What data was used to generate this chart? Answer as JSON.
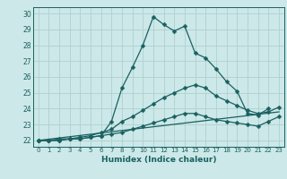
{
  "xlabel": "Humidex (Indice chaleur)",
  "xlim": [
    -0.5,
    23.5
  ],
  "ylim": [
    21.6,
    30.4
  ],
  "xticks": [
    0,
    1,
    2,
    3,
    4,
    5,
    6,
    7,
    8,
    9,
    10,
    11,
    12,
    13,
    14,
    15,
    16,
    17,
    18,
    19,
    20,
    21,
    22,
    23
  ],
  "yticks": [
    22,
    23,
    24,
    25,
    26,
    27,
    28,
    29,
    30
  ],
  "bg_color": "#cce8e8",
  "grid_color": "#b0d0d0",
  "line_color": "#1a6060",
  "lines": [
    {
      "x": [
        0,
        1,
        2,
        3,
        4,
        5,
        6,
        7,
        8,
        9,
        10,
        11,
        12,
        13,
        14,
        15,
        16,
        17,
        18,
        19,
        20,
        21,
        22
      ],
      "y": [
        22.0,
        22.0,
        22.0,
        22.1,
        22.1,
        22.2,
        22.3,
        23.2,
        25.3,
        26.6,
        28.0,
        29.8,
        29.3,
        28.9,
        29.2,
        27.5,
        27.2,
        26.5,
        25.7,
        25.1,
        23.7,
        23.6,
        24.0
      ],
      "marker": true
    },
    {
      "x": [
        0,
        1,
        2,
        3,
        4,
        5,
        6,
        7,
        8,
        9,
        10,
        11,
        12,
        13,
        14,
        15,
        16,
        17,
        18,
        19,
        20,
        21,
        22,
        23
      ],
      "y": [
        22.0,
        22.0,
        22.1,
        22.1,
        22.2,
        22.3,
        22.5,
        22.7,
        23.2,
        23.5,
        23.9,
        24.3,
        24.7,
        25.0,
        25.3,
        25.5,
        25.3,
        24.8,
        24.5,
        24.2,
        23.9,
        23.7,
        23.8,
        24.1
      ],
      "marker": true
    },
    {
      "x": [
        0,
        1,
        2,
        3,
        4,
        5,
        6,
        7,
        8,
        9,
        10,
        11,
        12,
        13,
        14,
        15,
        16,
        17,
        18,
        19,
        20,
        21,
        22,
        23
      ],
      "y": [
        22.0,
        22.0,
        22.0,
        22.1,
        22.1,
        22.2,
        22.3,
        22.4,
        22.5,
        22.7,
        22.9,
        23.1,
        23.3,
        23.5,
        23.7,
        23.7,
        23.5,
        23.3,
        23.2,
        23.1,
        23.0,
        22.9,
        23.2,
        23.5
      ],
      "marker": true
    },
    {
      "x": [
        0,
        23
      ],
      "y": [
        22.0,
        23.8
      ],
      "marker": false
    }
  ]
}
